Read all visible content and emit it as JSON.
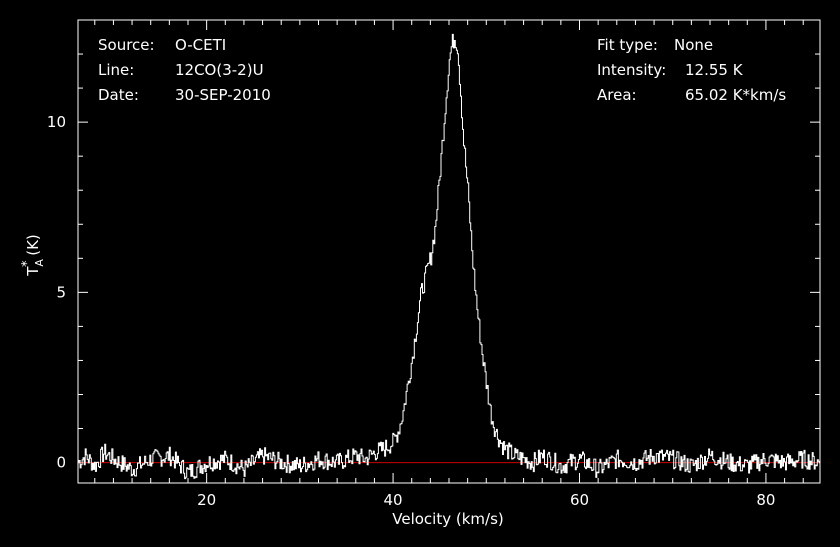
{
  "info": {
    "source_label": "Source:",
    "source_value": "O-CETI",
    "line_label": "Line:",
    "line_value": "12CO(3-2)U",
    "date_label": "Date:",
    "date_value": "30-SEP-2010",
    "fit_label": "Fit type:",
    "fit_value": "None",
    "intensity_label": "Intensity:",
    "intensity_value": "12.55 K",
    "area_label": "Area:",
    "area_value": "65.02 K*km/s"
  },
  "colors": {
    "background": "#000000",
    "frame": "#ffffff",
    "spectrum": "#ffffff",
    "baseline": "#cc0000"
  },
  "chart_data": {
    "type": "line",
    "xlabel": "Velocity (km/s)",
    "ylabel_base": "T",
    "ylabel_sub": "A",
    "ylabel_sup": "*",
    "ylabel_unit": " (K)",
    "xlim": [
      6.2,
      85.8
    ],
    "ylim": [
      -0.6,
      13.0
    ],
    "xticks": [
      20,
      40,
      60,
      80
    ],
    "yticks": [
      0,
      5,
      10
    ],
    "baseline_y": 0,
    "series": [
      {
        "x": [
          6.2,
          7.0,
          8.0,
          9.0,
          10.0,
          12.0,
          14.0,
          16.0,
          18.0,
          20.0,
          22.0,
          24.0,
          26.0,
          28.0,
          30.0,
          32.0,
          34.0,
          36.0,
          37.0,
          38.0,
          39.0,
          40.0,
          40.5,
          41.0,
          41.5,
          42.0,
          42.5,
          43.0,
          43.5,
          44.0,
          44.5,
          45.0,
          45.5,
          46.0,
          46.3,
          46.6,
          46.9,
          47.2,
          47.5,
          48.0,
          48.5,
          49.0,
          49.5,
          50.0,
          50.5,
          51.0,
          51.5,
          52.0,
          52.5,
          53.0,
          54.0,
          55.0,
          56.0,
          58.0,
          60.0,
          62.0,
          64.0,
          66.0,
          68.0,
          70.0,
          72.0,
          74.0,
          76.0,
          78.0,
          80.0,
          82.0,
          84.0,
          85.8
        ],
        "y": [
          0.0,
          0.2,
          -0.1,
          0.3,
          0.1,
          -0.2,
          0.1,
          0.2,
          -0.3,
          0.0,
          0.1,
          -0.2,
          0.2,
          0.0,
          -0.1,
          0.1,
          0.0,
          0.2,
          0.1,
          0.3,
          0.4,
          0.6,
          0.9,
          1.4,
          2.2,
          3.0,
          4.0,
          5.0,
          5.5,
          6.0,
          6.9,
          8.5,
          10.2,
          11.8,
          12.3,
          12.5,
          12.2,
          11.0,
          9.6,
          8.0,
          6.0,
          4.5,
          3.3,
          2.3,
          1.4,
          0.9,
          0.6,
          0.4,
          0.3,
          0.2,
          0.1,
          0.0,
          0.2,
          -0.1,
          0.1,
          -0.2,
          0.1,
          0.0,
          0.2,
          0.1,
          -0.1,
          0.2,
          0.0,
          -0.1,
          0.1,
          0.0,
          0.1,
          0.0
        ]
      }
    ]
  }
}
